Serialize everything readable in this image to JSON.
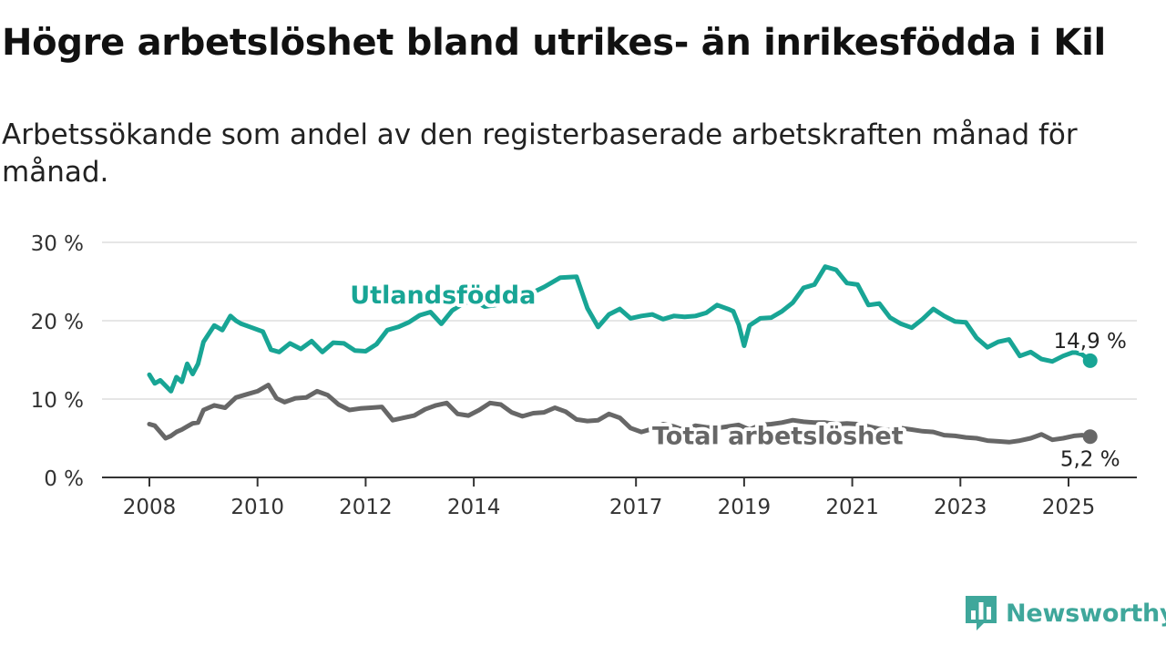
{
  "title": "Högre arbetslöshet bland utrikes- än inrikesfödda i Kil",
  "subtitle": "Arbetssökande som andel av den registerbaserade arbetskraften månad för månad.",
  "brand": {
    "name": "Newsworthy",
    "color": "#3fa79b",
    "icon": "bar-chart-icon"
  },
  "chart_data": {
    "type": "line",
    "title": "Högre arbetslöshet bland utrikes- än inrikesfödda i Kil",
    "subtitle": "Arbetssökande som andel av den registerbaserade arbetskraften månad för månad.",
    "xlabel": "",
    "ylabel": "",
    "x_range": [
      2007.9,
      2025.5
    ],
    "ylim": [
      0,
      30
    ],
    "y_ticks": [
      0,
      10,
      20,
      30
    ],
    "y_tick_labels": [
      "0 %",
      "10 %",
      "20 %",
      "30 %"
    ],
    "x_ticks": [
      2008,
      2010,
      2012,
      2014,
      2017,
      2019,
      2021,
      2023,
      2025
    ],
    "x_tick_labels": [
      "2008",
      "2010",
      "2012",
      "2014",
      "2017",
      "2019",
      "2021",
      "2023",
      "2025"
    ],
    "grid": true,
    "legend": "inline labels on lines",
    "series": [
      {
        "name": "Utlandsfödda",
        "color": "#18a595",
        "end_label": "14,9 %",
        "x": [
          2008.0,
          2008.1,
          2008.2,
          2008.3,
          2008.4,
          2008.5,
          2008.6,
          2008.7,
          2008.8,
          2008.9,
          2009.0,
          2009.2,
          2009.35,
          2009.5,
          2009.6,
          2009.7,
          2009.9,
          2010.1,
          2010.25,
          2010.4,
          2010.6,
          2010.8,
          2011.0,
          2011.2,
          2011.4,
          2011.6,
          2011.8,
          2012.0,
          2012.2,
          2012.4,
          2012.6,
          2012.8,
          2013.0,
          2013.2,
          2013.4,
          2013.6,
          2013.8,
          2014.0,
          2014.2,
          2014.4,
          2014.6,
          2014.8,
          2015.0,
          2015.3,
          2015.6,
          2015.9,
          2016.1,
          2016.3,
          2016.5,
          2016.7,
          2016.9,
          2017.1,
          2017.3,
          2017.5,
          2017.7,
          2017.9,
          2018.1,
          2018.3,
          2018.5,
          2018.7,
          2018.8,
          2018.9,
          2019.0,
          2019.1,
          2019.3,
          2019.5,
          2019.7,
          2019.9,
          2020.1,
          2020.3,
          2020.5,
          2020.7,
          2020.9,
          2021.1,
          2021.3,
          2021.5,
          2021.7,
          2021.9,
          2022.1,
          2022.3,
          2022.5,
          2022.7,
          2022.9,
          2023.1,
          2023.3,
          2023.5,
          2023.7,
          2023.9,
          2024.1,
          2024.3,
          2024.5,
          2024.7,
          2024.9,
          2025.1,
          2025.25,
          2025.4
        ],
        "y": [
          13.1,
          12.0,
          12.4,
          11.7,
          11.0,
          12.8,
          12.2,
          14.5,
          13.2,
          14.5,
          17.3,
          19.4,
          18.8,
          20.6,
          20.0,
          19.6,
          19.1,
          18.6,
          16.3,
          16.0,
          17.1,
          16.4,
          17.4,
          16.0,
          17.2,
          17.1,
          16.2,
          16.1,
          17.0,
          18.8,
          19.2,
          19.8,
          20.7,
          21.1,
          19.6,
          21.3,
          22.2,
          22.6,
          21.8,
          22.0,
          22.6,
          23.0,
          23.3,
          24.3,
          25.5,
          25.6,
          21.6,
          19.2,
          20.8,
          21.5,
          20.3,
          20.6,
          20.8,
          20.2,
          20.6,
          20.5,
          20.6,
          21.0,
          22.0,
          21.5,
          21.2,
          19.5,
          16.8,
          19.4,
          20.3,
          20.4,
          21.2,
          22.3,
          24.2,
          24.6,
          26.9,
          26.5,
          24.8,
          24.6,
          22.0,
          22.2,
          20.4,
          19.6,
          19.1,
          20.2,
          21.5,
          20.6,
          19.9,
          19.8,
          17.8,
          16.6,
          17.3,
          17.6,
          15.5,
          16.0,
          15.1,
          14.8,
          15.5,
          16.0,
          15.7,
          14.9
        ]
      },
      {
        "name": "Total arbetslöshet",
        "color": "#676767",
        "end_label": "5,2 %",
        "x": [
          2008.0,
          2008.1,
          2008.2,
          2008.3,
          2008.4,
          2008.5,
          2008.6,
          2008.7,
          2008.8,
          2008.9,
          2009.0,
          2009.2,
          2009.4,
          2009.6,
          2009.8,
          2010.0,
          2010.2,
          2010.35,
          2010.5,
          2010.7,
          2010.9,
          2011.1,
          2011.3,
          2011.5,
          2011.7,
          2011.9,
          2012.1,
          2012.3,
          2012.5,
          2012.7,
          2012.9,
          2013.1,
          2013.3,
          2013.5,
          2013.7,
          2013.9,
          2014.1,
          2014.3,
          2014.5,
          2014.7,
          2014.9,
          2015.1,
          2015.3,
          2015.5,
          2015.7,
          2015.9,
          2016.1,
          2016.3,
          2016.5,
          2016.7,
          2016.9,
          2017.1,
          2017.3,
          2017.5,
          2017.7,
          2017.9,
          2018.1,
          2018.3,
          2018.5,
          2018.7,
          2018.9,
          2019.1,
          2019.3,
          2019.5,
          2019.7,
          2019.9,
          2020.1,
          2020.3,
          2020.5,
          2020.7,
          2020.9,
          2021.1,
          2021.3,
          2021.5,
          2021.7,
          2021.9,
          2022.1,
          2022.3,
          2022.5,
          2022.7,
          2022.9,
          2023.1,
          2023.3,
          2023.5,
          2023.7,
          2023.9,
          2024.1,
          2024.3,
          2024.5,
          2024.7,
          2024.9,
          2025.1,
          2025.25,
          2025.4
        ],
        "y": [
          6.8,
          6.6,
          5.8,
          5.0,
          5.3,
          5.8,
          6.1,
          6.5,
          6.9,
          7.0,
          8.6,
          9.2,
          8.9,
          10.2,
          10.6,
          11.0,
          11.8,
          10.1,
          9.6,
          10.1,
          10.2,
          11.0,
          10.5,
          9.3,
          8.6,
          8.8,
          8.9,
          9.0,
          7.3,
          7.6,
          7.9,
          8.7,
          9.2,
          9.5,
          8.1,
          7.9,
          8.6,
          9.5,
          9.3,
          8.3,
          7.8,
          8.2,
          8.3,
          8.9,
          8.4,
          7.4,
          7.2,
          7.3,
          8.1,
          7.6,
          6.3,
          5.8,
          6.2,
          6.8,
          6.5,
          6.0,
          6.6,
          6.4,
          6.3,
          6.5,
          6.7,
          6.1,
          6.7,
          6.8,
          7.0,
          7.3,
          7.1,
          7.0,
          7.0,
          6.8,
          6.9,
          6.8,
          6.5,
          6.2,
          6.0,
          6.3,
          6.1,
          5.9,
          5.8,
          5.4,
          5.3,
          5.1,
          5.0,
          4.7,
          4.6,
          4.5,
          4.7,
          5.0,
          5.5,
          4.8,
          5.0,
          5.3,
          5.4,
          5.2
        ]
      }
    ]
  }
}
